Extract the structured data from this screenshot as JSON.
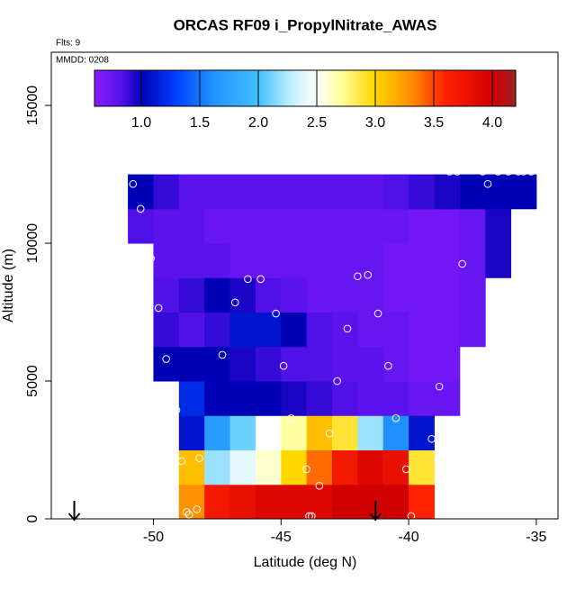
{
  "chart_data": {
    "type": "heatmap",
    "title": "ORCAS RF09 i_PropylNitrate_AWAS",
    "annotations": [
      "Flts: 9",
      "MMDD: 0208"
    ],
    "xlabel": "Latitude (deg N)",
    "ylabel": "Altitude (m)",
    "xlim": [
      -54,
      -34.15
    ],
    "ylim": [
      0,
      16930
    ],
    "xticks": [
      -50,
      -45,
      -40,
      -35
    ],
    "yticks": [
      0,
      5000,
      10000,
      15000
    ],
    "x": [
      -50.5,
      -49.5,
      -48.5,
      -47.5,
      -46.5,
      -45.5,
      -44.5,
      -43.5,
      -42.5,
      -41.5,
      -40.5,
      -39.5,
      -38.5,
      -37.5,
      -36.5,
      -35.5
    ],
    "y": [
      625,
      1875,
      3125,
      4375,
      5625,
      6875,
      8125,
      9375,
      10625,
      11875
    ],
    "z": [
      [
        null,
        null,
        3.3,
        3.7,
        3.8,
        3.9,
        3.9,
        3.9,
        4.0,
        4.0,
        4.0,
        3.6,
        null,
        null,
        null,
        null
      ],
      [
        null,
        null,
        3.1,
        2.2,
        2.4,
        2.6,
        3.0,
        3.4,
        3.7,
        3.9,
        3.8,
        2.9,
        null,
        null,
        null,
        null
      ],
      [
        null,
        null,
        1.1,
        1.7,
        2.1,
        2.5,
        2.7,
        3.1,
        2.9,
        2.2,
        1.6,
        1.1,
        null,
        null,
        null,
        null
      ],
      [
        null,
        null,
        1.2,
        1.0,
        1.0,
        1.0,
        0.95,
        0.9,
        0.85,
        0.8,
        0.8,
        0.75,
        0.75,
        null,
        null,
        null
      ],
      [
        null,
        1.0,
        1.0,
        1.0,
        0.95,
        0.9,
        0.85,
        0.85,
        0.8,
        0.8,
        0.75,
        0.7,
        0.7,
        null,
        null,
        null
      ],
      [
        null,
        0.9,
        0.85,
        0.9,
        1.1,
        1.1,
        1.0,
        0.85,
        0.8,
        0.75,
        0.75,
        0.7,
        0.7,
        0.75,
        null,
        null
      ],
      [
        null,
        0.85,
        0.9,
        1.0,
        0.95,
        0.85,
        0.8,
        0.75,
        0.75,
        0.75,
        0.7,
        0.7,
        0.7,
        0.75,
        null,
        null
      ],
      [
        null,
        0.8,
        0.8,
        0.8,
        0.75,
        0.75,
        0.75,
        0.75,
        0.75,
        0.75,
        0.7,
        0.7,
        0.7,
        0.75,
        0.95,
        null
      ],
      [
        0.85,
        0.8,
        0.8,
        0.75,
        0.75,
        0.75,
        0.75,
        0.75,
        0.75,
        0.75,
        0.75,
        0.7,
        0.7,
        0.75,
        0.95,
        null
      ],
      [
        1.0,
        0.9,
        0.8,
        0.8,
        0.8,
        0.8,
        0.8,
        0.8,
        0.8,
        0.8,
        0.85,
        0.9,
        0.95,
        1.0,
        1.0,
        1.0
      ]
    ],
    "points": {
      "x": [
        -50.8,
        -50.5,
        -50.1,
        -49.8,
        -49.5,
        -49.1,
        -48.9,
        -48.7,
        -48.6,
        -48.3,
        -48.2,
        -47.3,
        -46.8,
        -46.3,
        -45.8,
        -45.2,
        -44.9,
        -44.6,
        -44.0,
        -43.9,
        -43.8,
        -43.5,
        -43.1,
        -42.8,
        -42.4,
        -42.0,
        -41.6,
        -41.2,
        -40.8,
        -40.5,
        -40.1,
        -39.9,
        -39.1,
        -38.8,
        -38.4,
        -38.1,
        -37.9,
        -37.1,
        -36.9,
        -36.5,
        -36.1,
        -35.7,
        -35.5,
        -35.2
      ],
      "y": [
        12150,
        11250,
        9450,
        7650,
        5800,
        3950,
        2100,
        250,
        150,
        350,
        2200,
        5950,
        7850,
        8700,
        8700,
        7450,
        5550,
        3650,
        1800,
        100,
        100,
        1200,
        3100,
        5000,
        6900,
        8800,
        8850,
        7450,
        5550,
        3650,
        1800,
        100,
        2900,
        4800,
        12600,
        12600,
        9250,
        12600,
        12150,
        12600,
        12600,
        12600,
        12600,
        12600
      ]
    },
    "markers_x": [
      -53.1,
      -41.3
    ],
    "colorbar_lim": [
      0.6,
      4.2
    ],
    "colorbar_ticks": [
      {
        "value": 1,
        "label": "1.0"
      },
      1.5,
      {
        "value": 2,
        "label": "2.0"
      },
      2.5,
      {
        "value": 3,
        "label": "3.0"
      },
      3.5,
      {
        "value": 4,
        "label": "4.0"
      }
    ],
    "colorscale": [
      [
        0.6,
        "#8a1cff"
      ],
      [
        0.85,
        "#5010e8"
      ],
      [
        1.0,
        "#0000b4"
      ],
      [
        1.3,
        "#0040ff"
      ],
      [
        1.6,
        "#2090ff"
      ],
      [
        2.0,
        "#40c0ff"
      ],
      [
        2.3,
        "#c8f2ff"
      ],
      [
        2.5,
        "#ffffff"
      ],
      [
        2.7,
        "#ffffa0"
      ],
      [
        3.0,
        "#ffd700"
      ],
      [
        3.3,
        "#ff9000"
      ],
      [
        3.6,
        "#ff2000"
      ],
      [
        4.0,
        "#d00000"
      ],
      [
        4.2,
        "#a02020"
      ]
    ]
  }
}
